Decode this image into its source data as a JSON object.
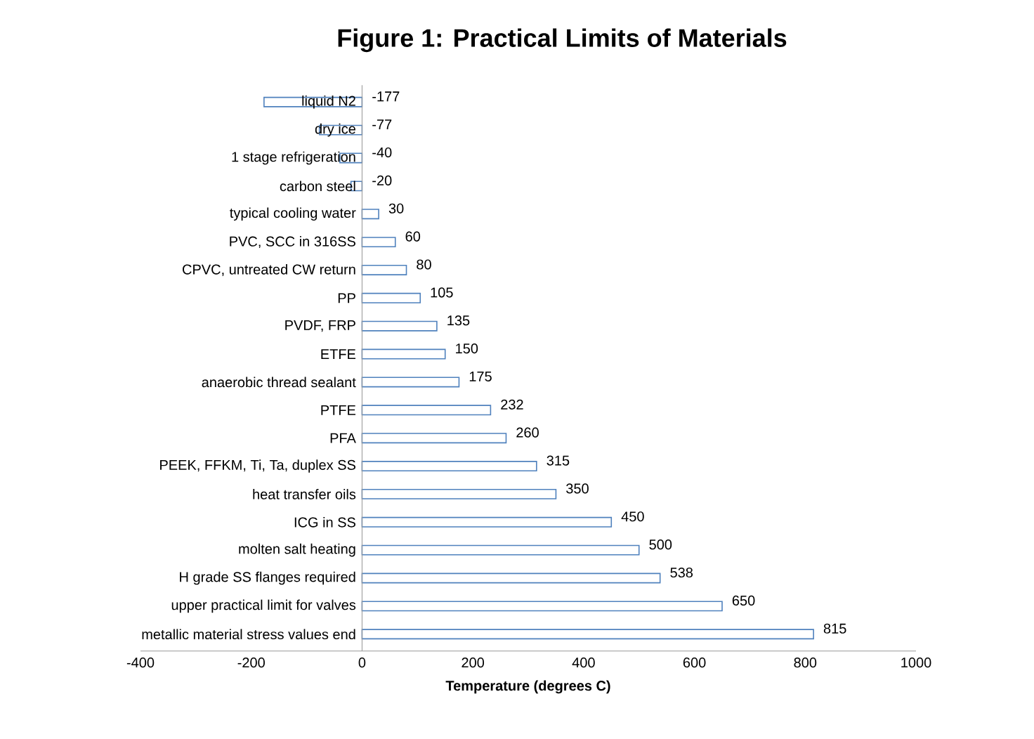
{
  "chart_data": {
    "type": "bar",
    "orientation": "horizontal",
    "title": "Figure 1: Practical Limits of Materials",
    "xlabel": "Temperature (degrees C)",
    "categories": [
      "liquid N2",
      "dry ice",
      "1 stage refrigeration",
      "carbon steel",
      "typical cooling water",
      "PVC, SCC in 316SS",
      "CPVC, untreated CW return",
      "PP",
      "PVDF, FRP",
      "ETFE",
      "anaerobic thread sealant",
      "PTFE",
      "PFA",
      "PEEK, FFKM, Ti, Ta, duplex SS",
      "heat transfer oils",
      "ICG in SS",
      "molten salt heating",
      "H grade SS flanges required",
      "upper practical limit for valves",
      "metallic material stress values end"
    ],
    "values": [
      -177,
      -77,
      -40,
      -20,
      30,
      60,
      80,
      105,
      135,
      150,
      175,
      232,
      260,
      315,
      350,
      450,
      500,
      538,
      650,
      815
    ],
    "color": "#4f81bd",
    "data_labels": true,
    "grid": false,
    "xlim": [
      -400,
      1000
    ],
    "xticks": [
      -400,
      -200,
      0,
      200,
      400,
      600,
      800,
      1000
    ]
  }
}
